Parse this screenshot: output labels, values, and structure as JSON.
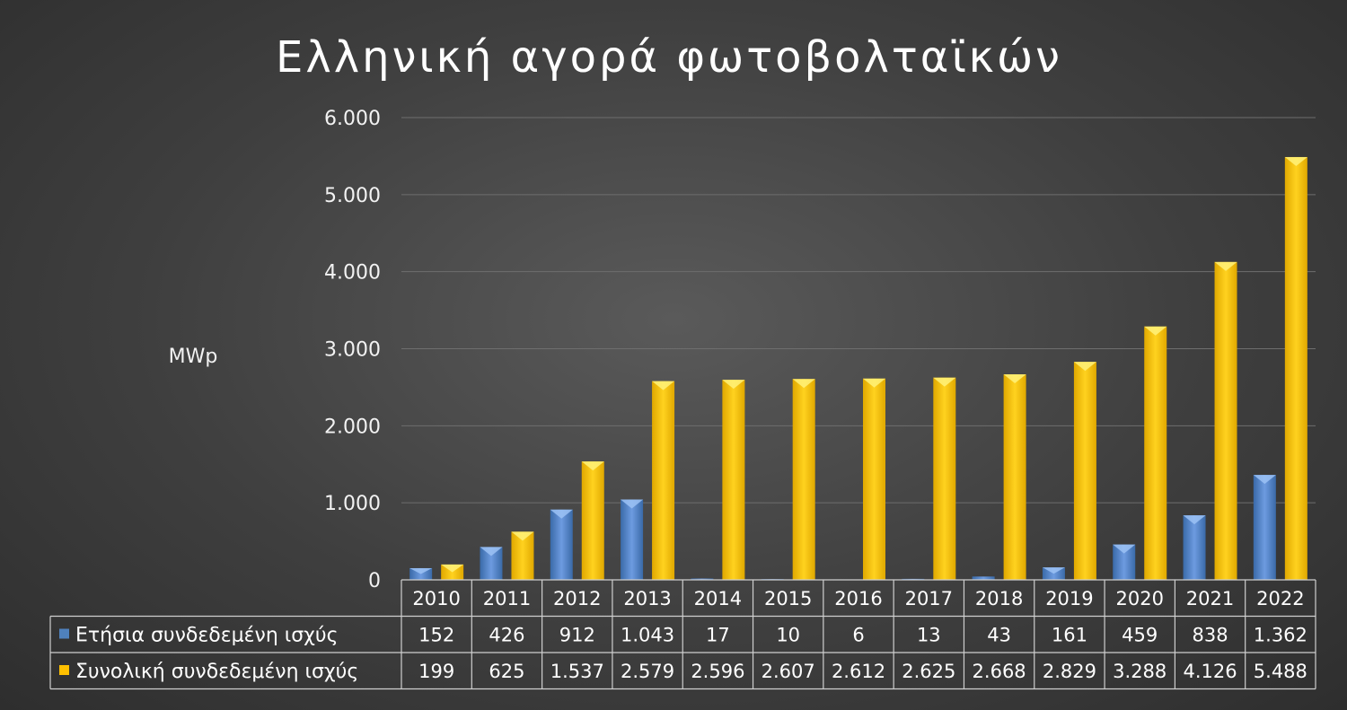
{
  "chart_data": {
    "type": "bar",
    "title": "Ελληνική αγορά φωτοβολταϊκών",
    "xlabel": "",
    "ylabel": "MWp",
    "ylim": [
      0,
      6000
    ],
    "yticks": [
      "0",
      "1.000",
      "2.000",
      "3.000",
      "4.000",
      "5.000",
      "6.000"
    ],
    "grid": true,
    "legend_placement": "data-table",
    "categories": [
      "2010",
      "2011",
      "2012",
      "2013",
      "2014",
      "2015",
      "2016",
      "2017",
      "2018",
      "2019",
      "2020",
      "2021",
      "2022"
    ],
    "series": [
      {
        "name": "Ετήσια συνδεδεμένη ισχύς",
        "color": "#4f81bd",
        "values": [
          152,
          426,
          912,
          1043,
          17,
          10,
          6,
          13,
          43,
          161,
          459,
          838,
          1362
        ],
        "labels": [
          "152",
          "426",
          "912",
          "1.043",
          "17",
          "10",
          "6",
          "13",
          "43",
          "161",
          "459",
          "838",
          "1.362"
        ]
      },
      {
        "name": "Συνολική συνδεδεμένη ισχύς",
        "color": "#ffc000",
        "values": [
          199,
          625,
          1537,
          2579,
          2596,
          2607,
          2612,
          2625,
          2668,
          2829,
          3288,
          4126,
          5488
        ],
        "labels": [
          "199",
          "625",
          "1.537",
          "2.579",
          "2.596",
          "2.607",
          "2.612",
          "2.625",
          "2.668",
          "2.829",
          "3.288",
          "4.126",
          "5.488"
        ]
      }
    ]
  }
}
